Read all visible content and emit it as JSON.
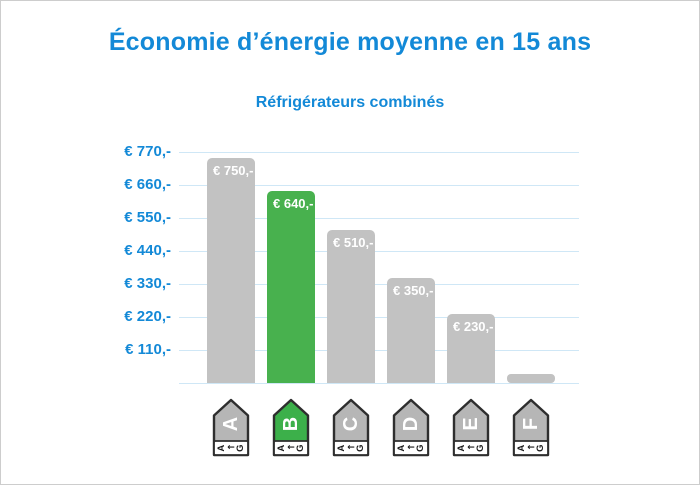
{
  "page": {
    "title": "Économie d’énergie moyenne en 15 ans",
    "subtitle": "Réfrigérateurs combinés"
  },
  "chart_data": {
    "type": "bar",
    "title": "Économie d’énergie moyenne en 15 ans",
    "subtitle": "Réfrigérateurs combinés",
    "categories": [
      "A",
      "B",
      "C",
      "D",
      "E",
      "F"
    ],
    "values": [
      750,
      640,
      510,
      350,
      230,
      30
    ],
    "bar_labels": [
      "€ 750,-",
      "€ 640,-",
      "€ 510,-",
      "€ 350,-",
      "€ 230,-",
      ""
    ],
    "highlighted_index": 1,
    "y_ticks": [
      {
        "value": 770,
        "label": "€ 770,-"
      },
      {
        "value": 660,
        "label": "€ 660,-"
      },
      {
        "value": 550,
        "label": "€ 550,-"
      },
      {
        "value": 440,
        "label": "€ 440,-"
      },
      {
        "value": 330,
        "label": "€ 330,-"
      },
      {
        "value": 220,
        "label": "€ 220,-"
      },
      {
        "value": 110,
        "label": "€ 110,-"
      },
      {
        "value": 0,
        "label": ""
      }
    ],
    "ylim": [
      0,
      770
    ],
    "grid": true,
    "legend": false,
    "colors": {
      "bar_default": "#c2c2c2",
      "bar_highlight": "#48b14e",
      "axis_text": "#1389d7",
      "gridline": "#cfe7f6",
      "bar_label_text": "#ffffff"
    }
  },
  "energy_icons": {
    "scale_from": "A",
    "scale_arrow": "←",
    "scale_to": "G",
    "items": [
      {
        "letter": "A",
        "highlighted": false
      },
      {
        "letter": "B",
        "highlighted": true
      },
      {
        "letter": "C",
        "highlighted": false
      },
      {
        "letter": "D",
        "highlighted": false
      },
      {
        "letter": "E",
        "highlighted": false
      },
      {
        "letter": "F",
        "highlighted": false
      }
    ],
    "colors": {
      "default": "#b6b6b6",
      "highlight": "#3cb04a",
      "border": "#2e2e2e",
      "letter": "#ffffff",
      "scale_text": "#1a1a1a",
      "band": "#ffffff"
    }
  }
}
